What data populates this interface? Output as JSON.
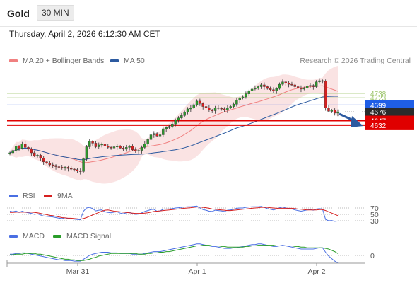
{
  "header": {
    "symbol": "Gold",
    "timeframe": "30 MIN"
  },
  "datetime": "Thursday, April 2, 2026 6:12:30 AM CET",
  "legend": {
    "ma20": "MA 20 + Bollinger Bands",
    "ma50": "MA 50",
    "rsi": "RSI",
    "rsi_ma": "9MA",
    "macd": "MACD",
    "macd_signal": "MACD Signal"
  },
  "source": "Research © 2026 Trading Central",
  "colors": {
    "up": "#2a9d2a",
    "down": "#d62020",
    "ma20": "#f08080",
    "ma50": "#2c5aa0",
    "resistance": "#9bc46a",
    "pivot": "#4a6fe3",
    "support": "#e00000",
    "last": "#333333"
  },
  "chart_data": {
    "type": "candlestick",
    "x_ticks": [
      "Mar 31",
      "Apr 1",
      "Apr 2"
    ],
    "price_levels": [
      {
        "label": "4738",
        "value": 4738,
        "kind": "resistance"
      },
      {
        "label": "4723",
        "value": 4723,
        "kind": "resistance"
      },
      {
        "label": "4699",
        "value": 4699,
        "kind": "pivot"
      },
      {
        "label": "4676",
        "value": 4676,
        "kind": "last"
      },
      {
        "label": "4647",
        "value": 4647,
        "kind": "support"
      },
      {
        "label": "4632",
        "value": 4632,
        "kind": "support"
      }
    ],
    "y_range": [
      4460,
      4860
    ],
    "close": [
      4540,
      4548,
      4562,
      4555,
      4570,
      4558,
      4552,
      4540,
      4530,
      4532,
      4522,
      4510,
      4506,
      4500,
      4498,
      4494,
      4492,
      4490,
      4492,
      4488,
      4486,
      4484,
      4480,
      4478,
      4520,
      4560,
      4578,
      4572,
      4560,
      4566,
      4570,
      4562,
      4558,
      4556,
      4560,
      4562,
      4556,
      4552,
      4558,
      4562,
      4550,
      4546,
      4548,
      4558,
      4570,
      4584,
      4600,
      4604,
      4596,
      4600,
      4620,
      4624,
      4628,
      4636,
      4650,
      4656,
      4664,
      4676,
      4686,
      4690,
      4700,
      4712,
      4704,
      4694,
      4690,
      4682,
      4680,
      4690,
      4688,
      4686,
      4682,
      4690,
      4694,
      4702,
      4716,
      4722,
      4726,
      4736,
      4746,
      4752,
      4756,
      4760,
      4766,
      4760,
      4754,
      4750,
      4746,
      4754,
      4768,
      4776,
      4772,
      4768,
      4766,
      4760,
      4756,
      4752,
      4756,
      4762,
      4764,
      4760,
      4776,
      4780,
      4778,
      4690,
      4678,
      4682,
      4672,
      4676
    ],
    "rsi": {
      "levels": [
        70,
        50,
        30
      ],
      "rsi": [
        60,
        58,
        61,
        56,
        60,
        57,
        55,
        53,
        50,
        52,
        48,
        45,
        44,
        43,
        42,
        40,
        38,
        37,
        39,
        37,
        36,
        35,
        34,
        33,
        60,
        70,
        72,
        68,
        61,
        63,
        64,
        58,
        56,
        55,
        57,
        58,
        54,
        52,
        55,
        57,
        52,
        50,
        51,
        55,
        59,
        62,
        65,
        66,
        60,
        61,
        66,
        67,
        67,
        68,
        70,
        71,
        72,
        73,
        74,
        74,
        75,
        76,
        70,
        65,
        63,
        60,
        59,
        63,
        62,
        61,
        59,
        63,
        64,
        66,
        69,
        70,
        70,
        72,
        73,
        74,
        74,
        74,
        75,
        72,
        68,
        66,
        64,
        67,
        71,
        73,
        70,
        68,
        67,
        64,
        62,
        60,
        62,
        64,
        65,
        63,
        67,
        68,
        67,
        34,
        30,
        31,
        28,
        29
      ],
      "ma": [
        56,
        56,
        57,
        57,
        57,
        57,
        57,
        57,
        56,
        55,
        53,
        51,
        49,
        47,
        46,
        44,
        42,
        40,
        39,
        38,
        38,
        37,
        36,
        35,
        37,
        40,
        44,
        48,
        52,
        56,
        60,
        63,
        64,
        62,
        60,
        59,
        58,
        57,
        56,
        55,
        54,
        53,
        53,
        53,
        54,
        55,
        57,
        59,
        60,
        61,
        62,
        63,
        64,
        65,
        66,
        67,
        68,
        69,
        70,
        71,
        72,
        73,
        73,
        72,
        71,
        69,
        67,
        66,
        65,
        64,
        63,
        62,
        62,
        63,
        64,
        65,
        66,
        67,
        68,
        69,
        70,
        71,
        72,
        72,
        72,
        71,
        70,
        69,
        69,
        69,
        69,
        69,
        69,
        68,
        67,
        66,
        65,
        64,
        64,
        64,
        64,
        65,
        65,
        62,
        58,
        54,
        50,
        46
      ]
    },
    "macd": {
      "zero_label": "0",
      "macd": [
        2,
        2,
        3,
        3,
        4,
        4,
        3,
        2,
        1,
        0,
        -1,
        -2,
        -3,
        -4,
        -5,
        -6,
        -7,
        -7,
        -8,
        -8,
        -8,
        -9,
        -9,
        -9,
        -6,
        -3,
        0,
        2,
        3,
        4,
        5,
        5,
        5,
        4,
        4,
        4,
        3,
        3,
        3,
        3,
        2,
        2,
        2,
        2,
        3,
        4,
        5,
        6,
        6,
        6,
        7,
        8,
        9,
        10,
        11,
        12,
        13,
        14,
        15,
        16,
        17,
        18,
        18,
        17,
        16,
        15,
        14,
        14,
        13,
        12,
        11,
        11,
        11,
        12,
        12,
        13,
        14,
        15,
        16,
        17,
        17,
        18,
        18,
        17,
        16,
        15,
        14,
        14,
        15,
        16,
        15,
        14,
        13,
        12,
        11,
        10,
        10,
        10,
        10,
        10,
        11,
        12,
        12,
        5,
        -1,
        -5,
        -9,
        -12
      ],
      "signal": [
        1,
        1,
        2,
        2,
        2,
        3,
        3,
        3,
        3,
        2,
        2,
        1,
        0,
        -1,
        -2,
        -3,
        -4,
        -5,
        -6,
        -6,
        -7,
        -7,
        -8,
        -8,
        -8,
        -7,
        -6,
        -4,
        -3,
        -1,
        0,
        1,
        2,
        3,
        3,
        3,
        3,
        3,
        3,
        3,
        3,
        3,
        2,
        2,
        2,
        3,
        3,
        4,
        4,
        5,
        5,
        6,
        6,
        7,
        8,
        9,
        10,
        11,
        12,
        13,
        14,
        15,
        15,
        16,
        16,
        16,
        15,
        15,
        15,
        14,
        14,
        13,
        13,
        13,
        13,
        13,
        13,
        14,
        14,
        15,
        15,
        16,
        16,
        16,
        16,
        16,
        16,
        15,
        15,
        15,
        15,
        15,
        15,
        14,
        14,
        13,
        13,
        12,
        12,
        12,
        12,
        12,
        12,
        11,
        10,
        8,
        6,
        3
      ]
    }
  }
}
